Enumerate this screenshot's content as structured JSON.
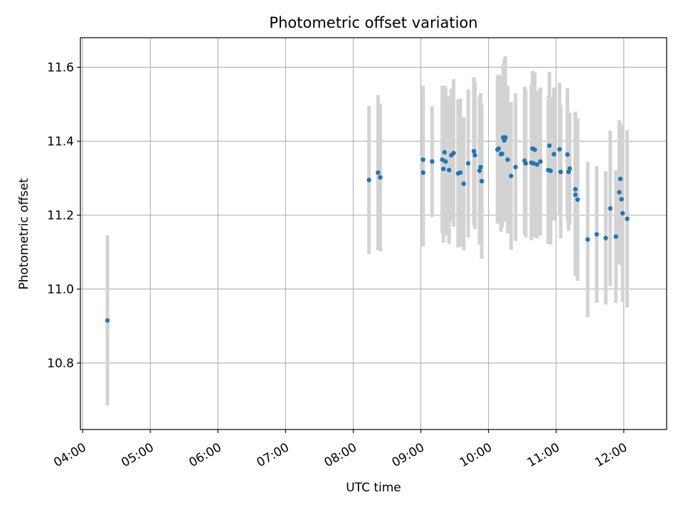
{
  "chart_data": {
    "type": "scatter",
    "title": "Photometric offset variation",
    "xlabel": "UTC time",
    "ylabel": "Photometric offset",
    "x_tick_labels": [
      "04:00",
      "05:00",
      "06:00",
      "07:00",
      "08:00",
      "09:00",
      "10:00",
      "11:00",
      "12:00"
    ],
    "y_tick_labels": [
      "10.8",
      "11.0",
      "11.2",
      "11.4",
      "11.6"
    ],
    "y_ticks": [
      10.8,
      11.0,
      11.2,
      11.4,
      11.6
    ],
    "xlim": [
      "03:58",
      "12:38"
    ],
    "ylim": [
      10.62,
      11.68
    ],
    "grid": true,
    "colors": {
      "point": "#1f77b4",
      "errorbar": "#d3d3d3",
      "grid": "#b0b0b0",
      "axis": "#000000"
    },
    "series": [
      {
        "x": [
          "04:22",
          "08:14",
          "08:22",
          "08:24",
          "09:02",
          "09:02",
          "09:10",
          "09:19",
          "09:20",
          "09:21",
          "09:22",
          "09:25",
          "09:27",
          "09:29",
          "09:33",
          "09:35",
          "09:38",
          "09:42",
          "09:47",
          "09:48",
          "09:52",
          "09:53",
          "09:54",
          "10:08",
          "10:09",
          "10:11",
          "10:12",
          "10:13",
          "10:14",
          "10:15",
          "10:17",
          "10:20",
          "10:24",
          "10:32",
          "10:33",
          "10:38",
          "10:39",
          "10:40",
          "10:41",
          "10:43",
          "10:46",
          "10:53",
          "10:54",
          "10:55",
          "10:58",
          "11:03",
          "11:04",
          "11:10",
          "11:11",
          "11:12",
          "11:17",
          "11:17",
          "11:19",
          "11:28",
          "11:36",
          "11:44",
          "11:48",
          "11:53",
          "11:56",
          "11:57",
          "11:58",
          "11:59",
          "12:03"
        ],
        "y": [
          10.915,
          11.295,
          11.315,
          11.302,
          11.35,
          11.315,
          11.345,
          11.35,
          11.325,
          11.37,
          11.345,
          11.322,
          11.362,
          11.368,
          11.313,
          11.315,
          11.285,
          11.34,
          11.373,
          11.362,
          11.32,
          11.33,
          11.292,
          11.377,
          11.38,
          11.365,
          11.366,
          11.41,
          11.402,
          11.41,
          11.35,
          11.306,
          11.33,
          11.347,
          11.34,
          11.342,
          11.38,
          11.34,
          11.377,
          11.337,
          11.345,
          11.322,
          11.388,
          11.32,
          11.365,
          11.378,
          11.317,
          11.364,
          11.317,
          11.326,
          11.255,
          11.27,
          11.242,
          11.134,
          11.148,
          11.138,
          11.218,
          11.142,
          11.262,
          11.298,
          11.243,
          11.205,
          11.19
        ],
        "yerr": [
          0.23,
          0.2,
          0.21,
          0.2,
          0.2,
          0.2,
          0.15,
          0.2,
          0.2,
          0.18,
          0.2,
          0.2,
          0.18,
          0.2,
          0.2,
          0.2,
          0.18,
          0.2,
          0.2,
          0.2,
          0.2,
          0.2,
          0.21,
          0.2,
          0.2,
          0.21,
          0.2,
          0.2,
          0.22,
          0.22,
          0.2,
          0.2,
          0.2,
          0.2,
          0.2,
          0.21,
          0.21,
          0.2,
          0.21,
          0.2,
          0.2,
          0.2,
          0.2,
          0.2,
          0.18,
          0.18,
          0.18,
          0.18,
          0.16,
          0.15,
          0.22,
          0.21,
          0.22,
          0.21,
          0.185,
          0.18,
          0.21,
          0.18,
          0.195,
          0.15,
          0.18,
          0.24,
          0.24
        ]
      }
    ]
  }
}
